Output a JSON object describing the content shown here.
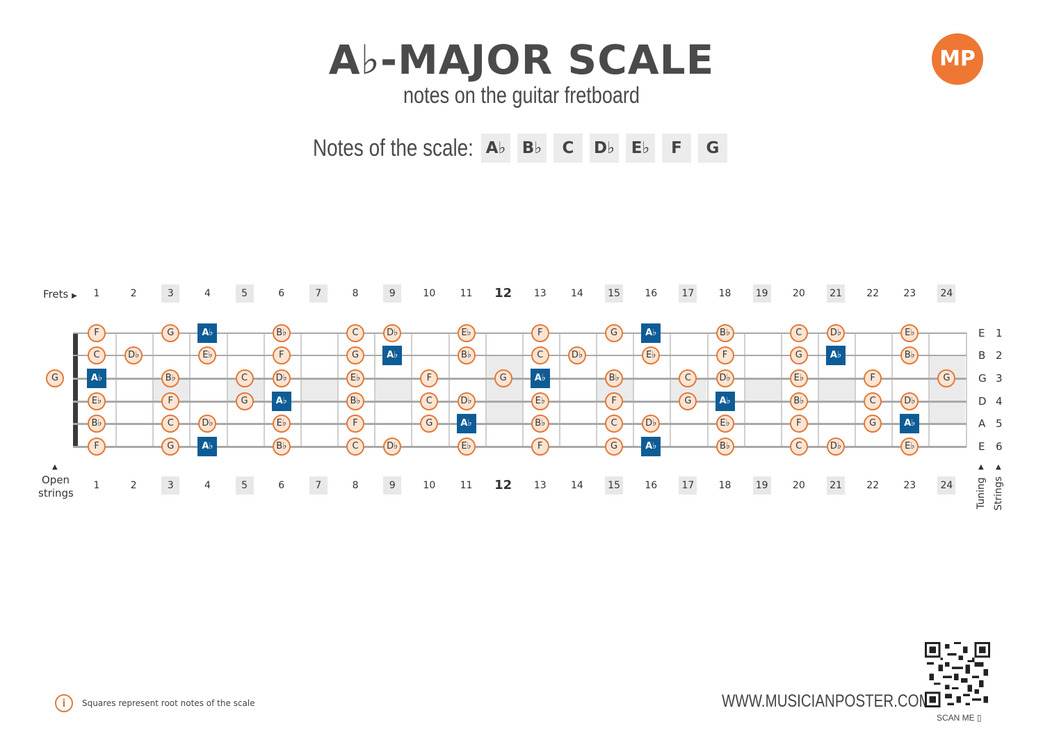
{
  "header": {
    "title": "A♭-MAJOR SCALE",
    "subtitle": "notes on the guitar fretboard",
    "logo_text": "MP"
  },
  "scale": {
    "label": "Notes of the scale:",
    "notes": [
      "A♭",
      "B♭",
      "C",
      "D♭",
      "E♭",
      "F",
      "G"
    ]
  },
  "fretboard": {
    "frets_label": "Frets",
    "frets_arrow_icon": "triangle-right-icon",
    "open_strings_label_1": "Open",
    "open_strings_label_2": "strings",
    "tuning_label": "Tuning",
    "strings_label": "Strings",
    "fret_numbers": [
      "1",
      "2",
      "3",
      "4",
      "5",
      "6",
      "7",
      "8",
      "9",
      "10",
      "11",
      "12",
      "13",
      "14",
      "15",
      "16",
      "17",
      "18",
      "19",
      "20",
      "21",
      "22",
      "23",
      "24"
    ],
    "shaded_frets": [
      3,
      5,
      7,
      9,
      12,
      15,
      17,
      19,
      21,
      24
    ],
    "tuning": [
      "E",
      "B",
      "G",
      "D",
      "A",
      "E"
    ],
    "string_numbers": [
      "1",
      "2",
      "3",
      "4",
      "5",
      "6"
    ],
    "open_notes": [
      "",
      "",
      "G",
      "",
      "",
      ""
    ],
    "colors": {
      "dot_fill": "#fde4d3",
      "dot_border": "#e07a3a",
      "root": "#0e5c96",
      "accent": "#ee7733"
    },
    "strings": [
      [
        "F",
        "",
        "G",
        "A♭",
        "",
        "B♭",
        "",
        "C",
        "D♭",
        "",
        "E♭",
        "",
        "F",
        "",
        "G",
        "A♭",
        "",
        "B♭",
        "",
        "C",
        "D♭",
        "",
        "E♭",
        ""
      ],
      [
        "C",
        "D♭",
        "",
        "E♭",
        "",
        "F",
        "",
        "G",
        "A♭",
        "",
        "B♭",
        "",
        "C",
        "D♭",
        "",
        "E♭",
        "",
        "F",
        "",
        "G",
        "A♭",
        "",
        "B♭",
        ""
      ],
      [
        "A♭",
        "",
        "B♭",
        "",
        "C",
        "D♭",
        "",
        "E♭",
        "",
        "F",
        "",
        "G",
        "A♭",
        "",
        "B♭",
        "",
        "C",
        "D♭",
        "",
        "E♭",
        "",
        "F",
        "",
        "G"
      ],
      [
        "E♭",
        "",
        "F",
        "",
        "G",
        "A♭",
        "",
        "B♭",
        "",
        "C",
        "D♭",
        "",
        "E♭",
        "",
        "F",
        "",
        "G",
        "A♭",
        "",
        "B♭",
        "",
        "C",
        "D♭",
        ""
      ],
      [
        "B♭",
        "",
        "C",
        "D♭",
        "",
        "E♭",
        "",
        "F",
        "",
        "G",
        "A♭",
        "",
        "B♭",
        "",
        "C",
        "D♭",
        "",
        "E♭",
        "",
        "F",
        "",
        "G",
        "A♭",
        ""
      ],
      [
        "F",
        "",
        "G",
        "A♭",
        "",
        "B♭",
        "",
        "C",
        "D♭",
        "",
        "E♭",
        "",
        "F",
        "",
        "G",
        "A♭",
        "",
        "B♭",
        "",
        "C",
        "D♭",
        "",
        "E♭",
        ""
      ]
    ],
    "root_note": "A♭"
  },
  "footer": {
    "info_icon": "info-icon",
    "legend_text": "Squares represent root notes of the scale",
    "website": "WWW.MUSICIANPOSTER.COM",
    "scan_me": "SCAN ME",
    "phone_icon": "phone-icon"
  }
}
